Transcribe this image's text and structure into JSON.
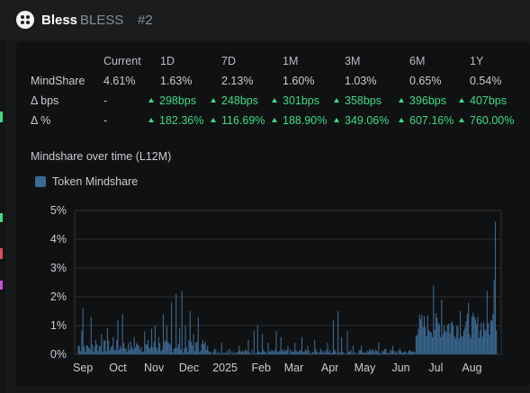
{
  "header": {
    "token_name": "Bless",
    "token_symbol": "BLESS",
    "rank": "#2"
  },
  "stats": {
    "columns": [
      "Current",
      "1D",
      "7D",
      "1M",
      "3M",
      "6M",
      "1Y"
    ],
    "rows": [
      {
        "label": "MindShare",
        "values": [
          "4.61%",
          "1.63%",
          "2.13%",
          "1.60%",
          "1.03%",
          "0.65%",
          "0.54%"
        ]
      },
      {
        "label": "Δ bps",
        "values": [
          "-",
          "298bps",
          "248bps",
          "301bps",
          "358bps",
          "396bps",
          "407bps"
        ]
      },
      {
        "label": "Δ %",
        "values": [
          "-",
          "182.36%",
          "116.69%",
          "188.90%",
          "349.06%",
          "607.16%",
          "760.00%"
        ]
      }
    ],
    "positive_color": "#3ddc84"
  },
  "chart_title": "Mindshare over time (L12M)",
  "legend": {
    "label": "Token Mindshare",
    "color": "#3b6a93"
  },
  "chart_data": {
    "type": "bar",
    "title": "Mindshare over time (L12M)",
    "series": [
      {
        "name": "Token Mindshare",
        "values": []
      }
    ],
    "xlabel": "",
    "ylabel": "",
    "y_ticks": [
      "5%",
      "4%",
      "3%",
      "2%",
      "1%",
      "0%"
    ],
    "ylim": [
      0,
      5
    ],
    "x_ticks": [
      "Sep",
      "Oct",
      "Nov",
      "Dec",
      "2025",
      "Feb",
      "Mar",
      "Apr",
      "May",
      "Jun",
      "Jul",
      "Aug"
    ],
    "x_tick_days": [
      4,
      34,
      65,
      95,
      126,
      157,
      185,
      216,
      246,
      277,
      307,
      338
    ],
    "days": 360,
    "spikes": [
      {
        "d": 3,
        "v": 0.8
      },
      {
        "d": 4,
        "v": 1.6
      },
      {
        "d": 7,
        "v": 0.3
      },
      {
        "d": 11,
        "v": 1.3
      },
      {
        "d": 15,
        "v": 0.5
      },
      {
        "d": 20,
        "v": 0.7
      },
      {
        "d": 25,
        "v": 0.9
      },
      {
        "d": 30,
        "v": 0.6
      },
      {
        "d": 34,
        "v": 1.2
      },
      {
        "d": 38,
        "v": 1.4
      },
      {
        "d": 43,
        "v": 0.4
      },
      {
        "d": 48,
        "v": 0.6
      },
      {
        "d": 52,
        "v": 0.3
      },
      {
        "d": 57,
        "v": 0.8
      },
      {
        "d": 60,
        "v": 0.5
      },
      {
        "d": 63,
        "v": 0.9
      },
      {
        "d": 66,
        "v": 1.0
      },
      {
        "d": 69,
        "v": 0.6
      },
      {
        "d": 73,
        "v": 1.4
      },
      {
        "d": 76,
        "v": 1.0
      },
      {
        "d": 80,
        "v": 1.8
      },
      {
        "d": 84,
        "v": 2.1
      },
      {
        "d": 87,
        "v": 0.9
      },
      {
        "d": 89,
        "v": 2.2
      },
      {
        "d": 92,
        "v": 1.0
      },
      {
        "d": 96,
        "v": 1.5
      },
      {
        "d": 99,
        "v": 0.7
      },
      {
        "d": 103,
        "v": 1.3
      },
      {
        "d": 107,
        "v": 0.5
      },
      {
        "d": 111,
        "v": 0.3
      },
      {
        "d": 117,
        "v": 0.2
      },
      {
        "d": 123,
        "v": 0.4
      },
      {
        "d": 130,
        "v": 0.2
      },
      {
        "d": 138,
        "v": 0.3
      },
      {
        "d": 146,
        "v": 0.5
      },
      {
        "d": 151,
        "v": 0.8
      },
      {
        "d": 154,
        "v": 1.0
      },
      {
        "d": 158,
        "v": 0.7
      },
      {
        "d": 163,
        "v": 0.4
      },
      {
        "d": 170,
        "v": 0.8
      },
      {
        "d": 174,
        "v": 0.6
      },
      {
        "d": 180,
        "v": 0.3
      },
      {
        "d": 186,
        "v": 0.4
      },
      {
        "d": 192,
        "v": 0.6
      },
      {
        "d": 197,
        "v": 0.3
      },
      {
        "d": 203,
        "v": 0.5
      },
      {
        "d": 208,
        "v": 0.2
      },
      {
        "d": 214,
        "v": 0.4
      },
      {
        "d": 219,
        "v": 1.2
      },
      {
        "d": 223,
        "v": 1.5
      },
      {
        "d": 226,
        "v": 0.6
      },
      {
        "d": 231,
        "v": 0.8
      },
      {
        "d": 236,
        "v": 0.3
      },
      {
        "d": 243,
        "v": 0.3
      },
      {
        "d": 250,
        "v": 0.2
      },
      {
        "d": 258,
        "v": 0.4
      },
      {
        "d": 264,
        "v": 0.2
      },
      {
        "d": 270,
        "v": 0.3
      },
      {
        "d": 276,
        "v": 0.2
      },
      {
        "d": 305,
        "v": 2.4
      },
      {
        "d": 312,
        "v": 1.9
      },
      {
        "d": 328,
        "v": 1.5
      },
      {
        "d": 335,
        "v": 1.8
      },
      {
        "d": 343,
        "v": 1.3
      },
      {
        "d": 351,
        "v": 2.2
      },
      {
        "d": 356,
        "v": 1.4
      },
      {
        "d": 357,
        "v": 2.6
      },
      {
        "d": 358,
        "v": 4.61
      }
    ],
    "dense_start_day": 290,
    "dense_level": 1.0
  }
}
